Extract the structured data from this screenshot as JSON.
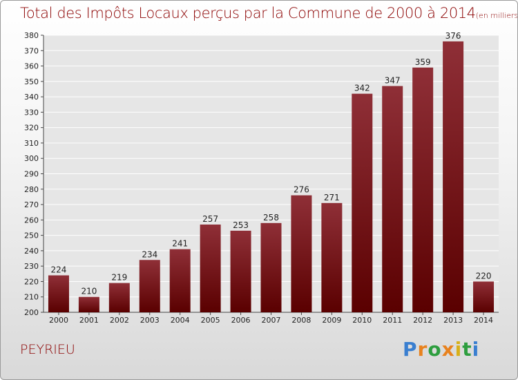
{
  "header": {
    "title": "Total des Impôts Locaux perçus par la Commune de 2000 à 2014",
    "unit": "(en milliers d'€)"
  },
  "footer": {
    "commune": "PEYRIEU",
    "logo": "Proxiti"
  },
  "colors": {
    "bar_top": "#8f2f37",
    "bar_bottom": "#5a0000",
    "title": "#8b0000",
    "grid": "#ffffff"
  },
  "chart_data": {
    "type": "bar",
    "title": "Total des Impôts Locaux perçus par la Commune de 2000 à 2014",
    "subtitle": "(en milliers d'€)",
    "xlabel": "",
    "ylabel": "",
    "categories": [
      "2000",
      "2001",
      "2002",
      "2003",
      "2004",
      "2005",
      "2006",
      "2007",
      "2008",
      "2009",
      "2010",
      "2011",
      "2012",
      "2013",
      "2014"
    ],
    "values": [
      224,
      210,
      219,
      234,
      241,
      257,
      253,
      258,
      276,
      271,
      342,
      347,
      359,
      376,
      220
    ],
    "ylim": [
      200,
      380
    ],
    "yticks": [
      200,
      210,
      220,
      230,
      240,
      250,
      260,
      270,
      280,
      290,
      300,
      310,
      320,
      330,
      340,
      350,
      360,
      370,
      380
    ],
    "grid": true,
    "data_labels": true
  }
}
